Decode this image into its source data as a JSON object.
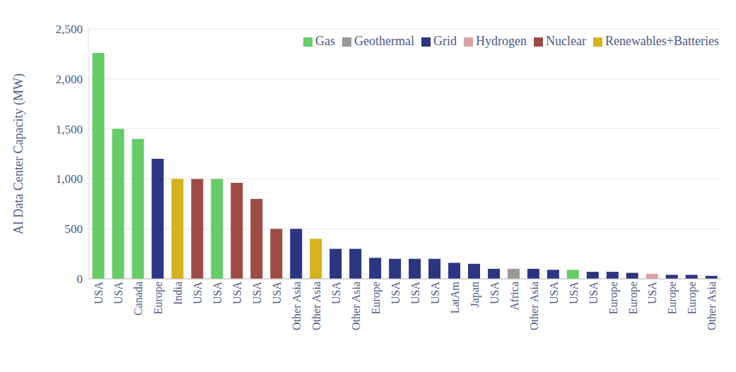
{
  "chart_data": {
    "type": "bar",
    "y_label": "AI Data Center Capacity (MW)",
    "categories": [
      "USA",
      "USA",
      "Canada",
      "Europe",
      "India",
      "USA",
      "USA",
      "USA",
      "USA",
      "USA",
      "Other Asia",
      "Other Asia",
      "USA",
      "Other Asia",
      "Europe",
      "USA",
      "USA",
      "USA",
      "LatAm",
      "Japan",
      "USA",
      "Africa",
      "Other Asia",
      "USA",
      "USA",
      "USA",
      "Europe",
      "Europe",
      "USA",
      "Europe",
      "Europe",
      "Other Asia"
    ],
    "series": [
      {
        "name": "Gas",
        "color": "#66cc66",
        "values": [
          2260,
          1500,
          1400,
          null,
          null,
          null,
          1000,
          null,
          null,
          null,
          null,
          null,
          null,
          null,
          null,
          null,
          null,
          null,
          null,
          null,
          null,
          null,
          null,
          null,
          90,
          null,
          null,
          null,
          null,
          null,
          null,
          null
        ]
      },
      {
        "name": "Nuclear",
        "color": "#9e4b46",
        "values": [
          null,
          null,
          null,
          null,
          null,
          1000,
          null,
          960,
          800,
          500,
          null,
          null,
          null,
          null,
          null,
          null,
          null,
          null,
          null,
          null,
          null,
          null,
          null,
          null,
          null,
          null,
          null,
          null,
          null,
          null,
          null,
          null
        ]
      },
      {
        "name": "Renewables+Batteries",
        "color": "#d6b21e",
        "values": [
          null,
          null,
          null,
          null,
          1000,
          null,
          null,
          null,
          null,
          null,
          null,
          400,
          null,
          null,
          null,
          null,
          null,
          null,
          null,
          null,
          null,
          null,
          null,
          null,
          null,
          null,
          null,
          null,
          null,
          null,
          null,
          null
        ]
      },
      {
        "name": "Grid",
        "color": "#2b3580",
        "values": [
          null,
          null,
          null,
          1200,
          null,
          null,
          null,
          null,
          null,
          null,
          500,
          null,
          300,
          300,
          210,
          200,
          200,
          200,
          160,
          150,
          100,
          null,
          100,
          90,
          null,
          70,
          70,
          60,
          null,
          40,
          40,
          30
        ]
      },
      {
        "name": "Hydrogen",
        "color": "#d9a3a3",
        "values": [
          null,
          null,
          null,
          null,
          null,
          null,
          null,
          null,
          null,
          null,
          null,
          null,
          null,
          null,
          null,
          null,
          null,
          null,
          null,
          null,
          null,
          null,
          null,
          null,
          null,
          null,
          null,
          null,
          50,
          null,
          null,
          null
        ]
      },
      {
        "name": "Geothermal",
        "color": "#999999",
        "values": [
          null,
          null,
          null,
          null,
          null,
          null,
          null,
          null,
          null,
          null,
          null,
          null,
          null,
          null,
          null,
          null,
          null,
          null,
          null,
          null,
          null,
          100,
          null,
          null,
          null,
          null,
          null,
          null,
          null,
          null,
          null,
          null
        ]
      }
    ],
    "stacked": true,
    "ylim": [
      0,
      2500
    ],
    "yticks": [
      0,
      500,
      {
        "value": 1000,
        "label": "1,000"
      },
      {
        "value": 1500,
        "label": "1,500"
      },
      {
        "value": 2000,
        "label": "2,000"
      },
      {
        "value": 2500,
        "label": "2,500"
      }
    ],
    "grid": true,
    "legend": "upper right"
  }
}
